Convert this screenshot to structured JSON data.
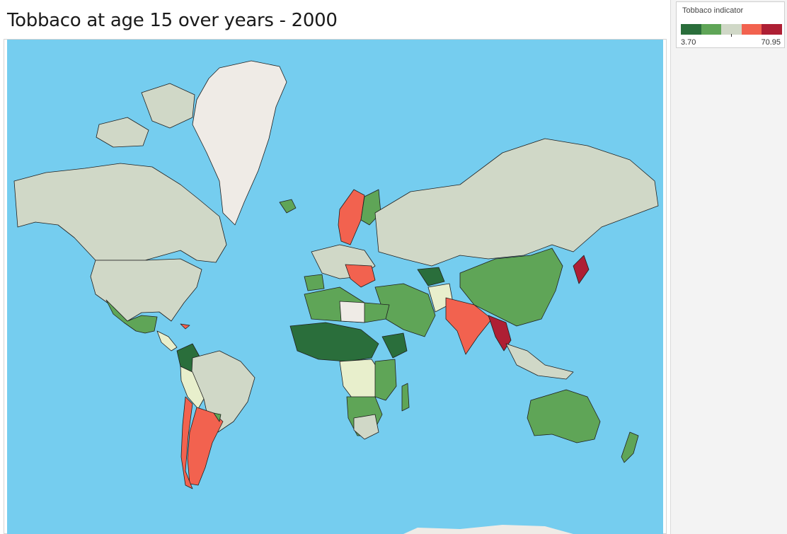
{
  "title": "Tobbaco at age 15 over years - 2000",
  "legend": {
    "title": "Tobbaco indicator",
    "min_label": "3.70",
    "max_label": "70.95",
    "colors": [
      "#2a6e3b",
      "#5fa557",
      "#d0d8c7",
      "#f2624f",
      "#ae1f34"
    ]
  },
  "map": {
    "ocean_color": "#75cdef",
    "no_data_color": "#efebe6",
    "very_low_color": "#e8efcc"
  }
}
